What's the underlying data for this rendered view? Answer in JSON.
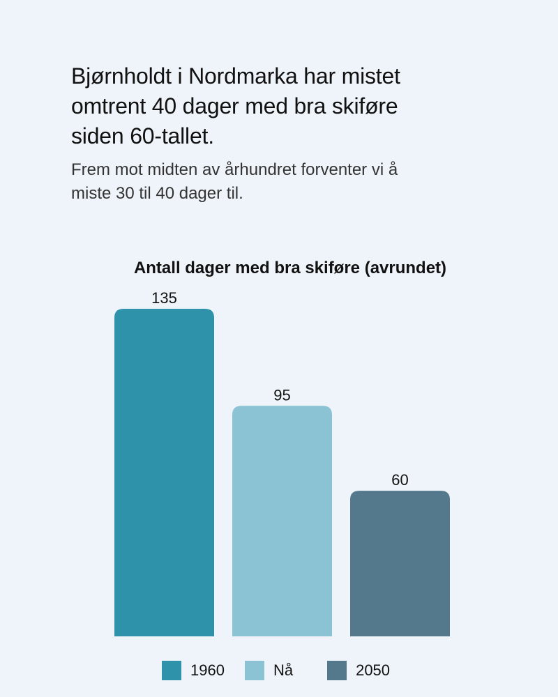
{
  "header": {
    "headline": "Bjørnholdt i Nordmarka har mistet omtrent 40 dager med bra skiføre siden 60-tallet.",
    "subtitle": "Frem mot midten av århundret forventer vi å miste 30 til 40 dager til."
  },
  "chart_data": {
    "type": "bar",
    "title": "Antall dager med bra skiføre (avrundet)",
    "categories": [
      "1960",
      "Nå",
      "2050"
    ],
    "values": [
      135,
      95,
      60
    ],
    "colors": [
      "#2e93aa",
      "#8cc3d4",
      "#54788c"
    ],
    "xlabel": "",
    "ylabel": "",
    "ylim": [
      0,
      135
    ],
    "grid": false,
    "legend": "bottom"
  },
  "legend": {
    "items": [
      {
        "label": "1960",
        "color": "#2e93aa"
      },
      {
        "label": "Nå",
        "color": "#8cc3d4"
      },
      {
        "label": "2050",
        "color": "#54788c"
      }
    ]
  }
}
